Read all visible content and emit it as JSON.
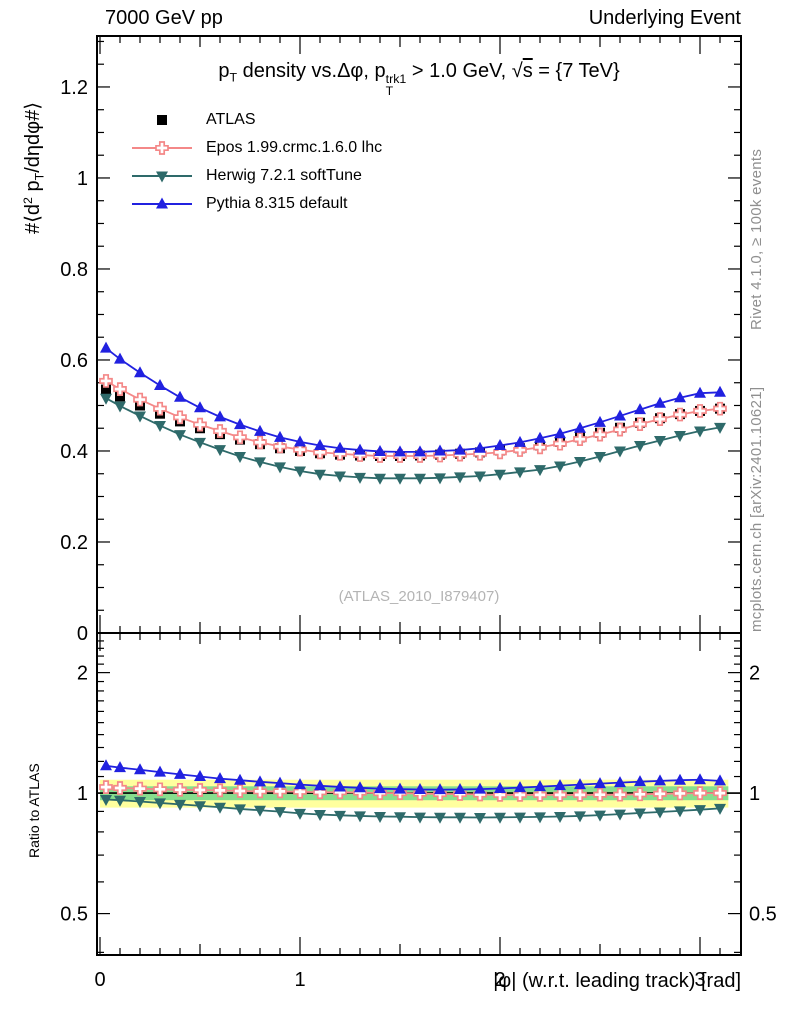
{
  "header": {
    "left": "7000 GeV pp",
    "right": "Underlying Event"
  },
  "side_notes": {
    "top_right": "Rivet 4.1.0, ≥ 100k events",
    "bottom_right": "mcplots.cern.ch [arXiv:2401.10621]"
  },
  "watermark": "(ATLAS_2010_I879407)",
  "chart_data": {
    "type": "line",
    "panels": [
      "main",
      "ratio"
    ],
    "title": "p_T density vs.Δφ, p_T^trk1 > 1.0 GeV, √s = {7 TeV}",
    "title_parts": [
      {
        "t": "p"
      },
      {
        "t": "T",
        "s": "sub"
      },
      {
        "t": " density vs.Δφ, p"
      },
      {
        "t": "trk1|T",
        "s": "supsub"
      },
      {
        "t": " > 1.0 GeV, "
      },
      {
        "t": "√"
      },
      {
        "t": "s",
        "s": "overline"
      },
      {
        "t": " = {7 TeV}"
      }
    ],
    "xlabel": "|φ| (w.r.t. leading track) [rad]",
    "ylabel": "#⟨d^2 p_T/dηdφ#⟩",
    "ylabel_parts": [
      {
        "t": "#⟨d"
      },
      {
        "t": "2",
        "s": "sup"
      },
      {
        "t": " p"
      },
      {
        "t": "T",
        "s": "sub"
      },
      {
        "t": "/dηdφ#⟩"
      }
    ],
    "ratio_ylabel": "Ratio to ATLAS",
    "xlim": [
      -0.015,
      3.205
    ],
    "x_ticks": [
      0,
      1,
      2,
      3
    ],
    "x_medium_ticks": [
      0.5,
      1.5,
      2.5
    ],
    "x_minor_step": 0.1,
    "main_ylim": [
      0,
      1.312
    ],
    "main_y_ticks": [
      0,
      0.2,
      0.4,
      0.6,
      0.8,
      1,
      1.2
    ],
    "main_y_minor_step": 0.05,
    "ratio_scale": "log",
    "ratio_ylim": [
      0.394,
      2.512
    ],
    "ratio_y_ticks": [
      0.5,
      1,
      2
    ],
    "ratio_y_minor_ticks": [
      0.4,
      0.6,
      0.7,
      0.8,
      0.9,
      1.1,
      1.2,
      1.3,
      1.4,
      1.5,
      1.6,
      1.7,
      1.8,
      1.9,
      2.1,
      2.2,
      2.3,
      2.4
    ],
    "bands": {
      "x_range": [
        0,
        3.1416
      ],
      "yellow": [
        0.92,
        1.08
      ],
      "green": [
        0.96,
        1.04
      ],
      "yellow_color": "#ffff9e",
      "green_color": "#86de8e",
      "reference_line": 1.0
    },
    "x": [
      0.03,
      0.1,
      0.2,
      0.3,
      0.4,
      0.5,
      0.6,
      0.7,
      0.8,
      0.9,
      1.0,
      1.1,
      1.2,
      1.3,
      1.4,
      1.5,
      1.6,
      1.7,
      1.8,
      1.9,
      2.0,
      2.1,
      2.2,
      2.3,
      2.4,
      2.5,
      2.6,
      2.7,
      2.8,
      2.9,
      3.0,
      3.1
    ],
    "series": [
      {
        "name": "ATLAS",
        "color": "#000000",
        "marker": "square",
        "line": false,
        "err": 0.008,
        "values": [
          0.535,
          0.52,
          0.5,
          0.482,
          0.465,
          0.45,
          0.437,
          0.425,
          0.415,
          0.406,
          0.4,
          0.395,
          0.392,
          0.39,
          0.389,
          0.389,
          0.39,
          0.392,
          0.394,
          0.397,
          0.401,
          0.406,
          0.412,
          0.42,
          0.43,
          0.44,
          0.451,
          0.462,
          0.472,
          0.481,
          0.488,
          0.493
        ],
        "ratio": null
      },
      {
        "name": "Epos 1.99.crmc.1.6.0 lhc",
        "color": "#f48888",
        "marker": "open-cross",
        "line": true,
        "values": [
          0.554,
          0.536,
          0.513,
          0.493,
          0.474,
          0.458,
          0.444,
          0.43,
          0.419,
          0.41,
          0.403,
          0.397,
          0.394,
          0.391,
          0.389,
          0.389,
          0.389,
          0.39,
          0.392,
          0.394,
          0.397,
          0.402,
          0.408,
          0.416,
          0.426,
          0.436,
          0.447,
          0.459,
          0.47,
          0.48,
          0.488,
          0.493
        ],
        "ratio": [
          1.035,
          1.03,
          1.026,
          1.022,
          1.019,
          1.018,
          1.016,
          1.012,
          1.01,
          1.01,
          1.008,
          1.005,
          1.005,
          1.003,
          1.0,
          1.0,
          0.997,
          0.995,
          0.995,
          0.992,
          0.99,
          0.99,
          0.99,
          0.99,
          0.99,
          0.991,
          0.991,
          0.993,
          0.996,
          0.998,
          1.0,
          1.0
        ]
      },
      {
        "name": "Herwig 7.2.1 softTune",
        "color": "#2e6a6a",
        "marker": "triangle-down",
        "line": true,
        "values": [
          0.516,
          0.499,
          0.477,
          0.456,
          0.436,
          0.419,
          0.403,
          0.388,
          0.376,
          0.365,
          0.356,
          0.349,
          0.345,
          0.342,
          0.34,
          0.34,
          0.34,
          0.341,
          0.343,
          0.345,
          0.349,
          0.354,
          0.359,
          0.367,
          0.377,
          0.388,
          0.4,
          0.412,
          0.423,
          0.434,
          0.444,
          0.452
        ],
        "ratio": [
          0.964,
          0.96,
          0.953,
          0.945,
          0.937,
          0.93,
          0.922,
          0.913,
          0.906,
          0.899,
          0.89,
          0.884,
          0.88,
          0.877,
          0.874,
          0.873,
          0.871,
          0.87,
          0.87,
          0.869,
          0.87,
          0.871,
          0.872,
          0.874,
          0.877,
          0.881,
          0.886,
          0.892,
          0.897,
          0.903,
          0.909,
          0.916
        ]
      },
      {
        "name": "Pythia 8.315 default",
        "color": "#2121e0",
        "marker": "triangle-up",
        "line": true,
        "values": [
          0.626,
          0.602,
          0.572,
          0.544,
          0.518,
          0.495,
          0.475,
          0.458,
          0.443,
          0.43,
          0.42,
          0.412,
          0.406,
          0.402,
          0.399,
          0.398,
          0.398,
          0.4,
          0.402,
          0.406,
          0.412,
          0.419,
          0.428,
          0.438,
          0.45,
          0.463,
          0.477,
          0.491,
          0.505,
          0.517,
          0.527,
          0.529
        ],
        "ratio": [
          1.17,
          1.158,
          1.144,
          1.128,
          1.114,
          1.1,
          1.087,
          1.077,
          1.067,
          1.059,
          1.05,
          1.043,
          1.036,
          1.031,
          1.026,
          1.023,
          1.021,
          1.02,
          1.021,
          1.023,
          1.027,
          1.032,
          1.038,
          1.044,
          1.05,
          1.056,
          1.062,
          1.068,
          1.073,
          1.077,
          1.08,
          1.073
        ]
      }
    ]
  }
}
